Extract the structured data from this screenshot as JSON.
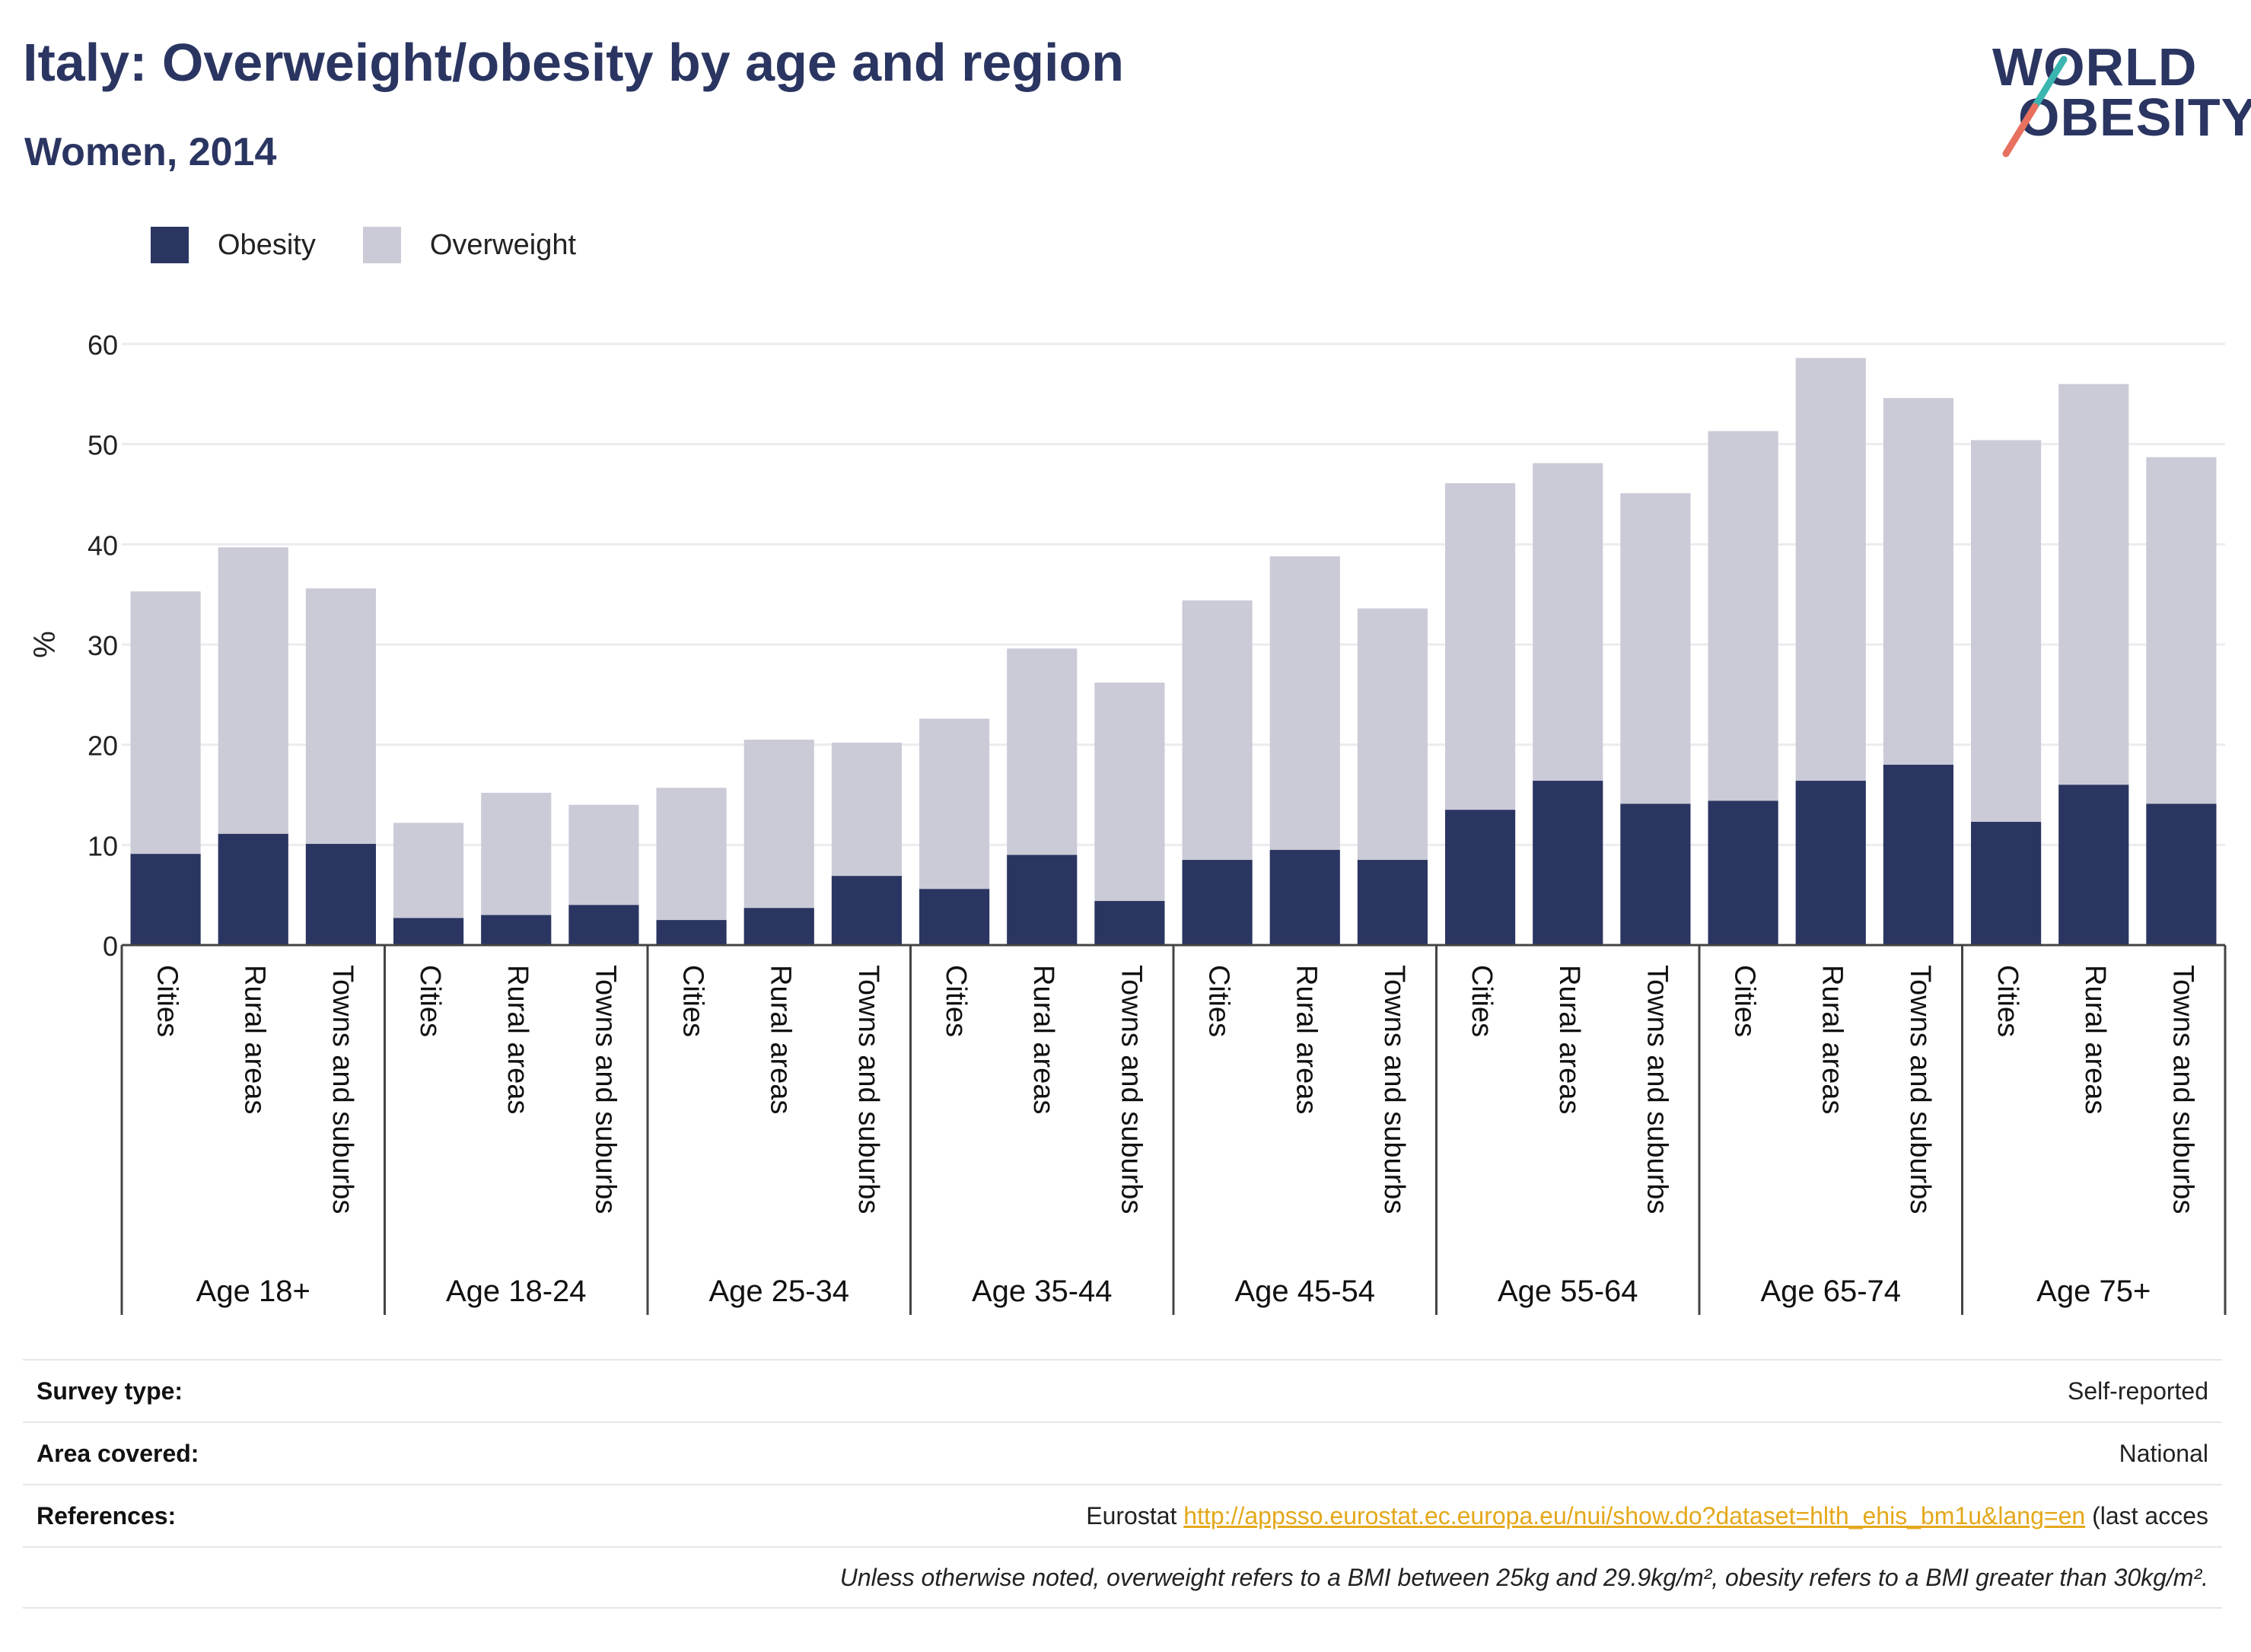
{
  "header": {
    "title": "Italy: Overweight/obesity by age and region",
    "subtitle": "Women, 2014"
  },
  "logo": {
    "line1": "WORLD",
    "line2": "OBESITY",
    "slash_colors": [
      "#3ab5b0",
      "#e8705f"
    ]
  },
  "legend": [
    {
      "label": "Obesity",
      "color": "#2a3561"
    },
    {
      "label": "Overweight",
      "color": "#cacbd7"
    }
  ],
  "chart_data": {
    "type": "bar",
    "stacked": false,
    "ylabel": "%",
    "ylim": [
      0,
      60
    ],
    "yticks": [
      0,
      10,
      20,
      30,
      40,
      50,
      60
    ],
    "grid": true,
    "subcategories": [
      "Cities",
      "Rural areas",
      "Towns and suburbs"
    ],
    "groups": [
      "Age 18+",
      "Age 18-24",
      "Age 25-34",
      "Age 35-44",
      "Age 45-54",
      "Age 55-64",
      "Age 65-74",
      "Age 75+"
    ],
    "series": [
      {
        "name": "Overweight",
        "color": "#cacbd7",
        "values": [
          35.3,
          39.7,
          35.6,
          12.2,
          15.2,
          14.0,
          15.7,
          20.5,
          20.2,
          22.6,
          29.6,
          26.2,
          34.4,
          38.8,
          33.6,
          46.1,
          48.1,
          45.1,
          51.3,
          58.6,
          54.6,
          50.4,
          56.0,
          48.7
        ]
      },
      {
        "name": "Obesity",
        "color": "#2a3561",
        "values": [
          9.1,
          11.1,
          10.1,
          2.7,
          3.0,
          4.0,
          2.5,
          3.7,
          6.9,
          5.6,
          9.0,
          4.4,
          8.5,
          9.5,
          8.5,
          13.5,
          16.4,
          14.1,
          14.4,
          16.4,
          18.0,
          12.3,
          16.0,
          14.1
        ]
      }
    ]
  },
  "info": {
    "survey_type_label": "Survey type:",
    "survey_type_value": "Self-reported",
    "area_label": "Area covered:",
    "area_value": "National",
    "references_label": "References:",
    "references_prefix": "Eurostat ",
    "references_link": "http://appsso.eurostat.ec.europa.eu/nui/show.do?dataset=hlth_ehis_bm1u&lang=en",
    "references_suffix": " (last acces",
    "note": "Unless otherwise noted, overweight refers to a BMI between 25kg and 29.9kg/m², obesity refers to a BMI greater than 30kg/m²."
  }
}
